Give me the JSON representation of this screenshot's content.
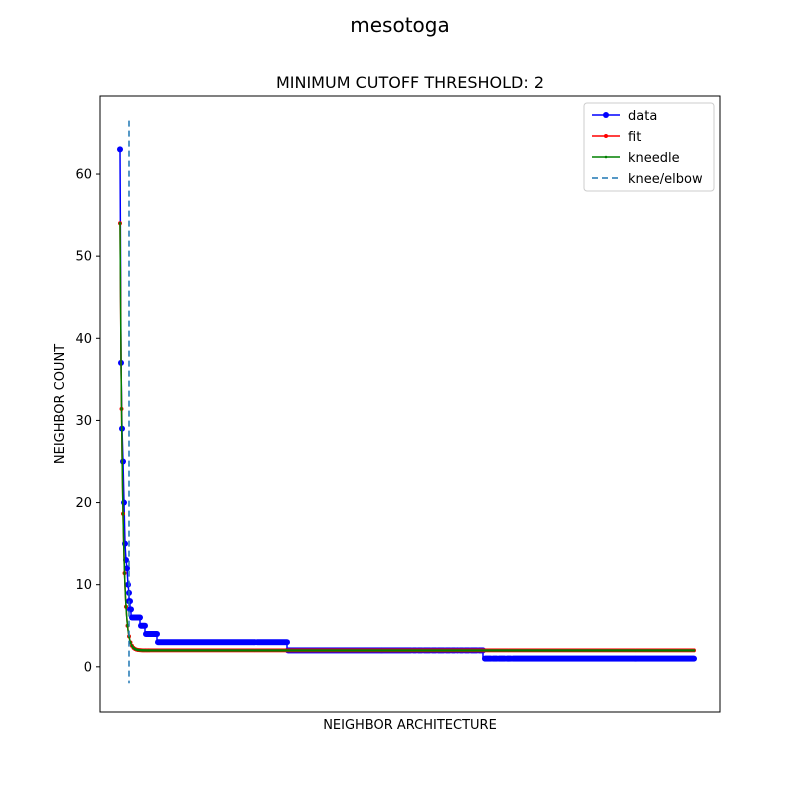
{
  "chart_data": {
    "type": "line",
    "suptitle": "mesotoga",
    "title": "MINIMUM CUTOFF THRESHOLD: 2",
    "xlabel": "NEIGHBOR ARCHITECTURE",
    "ylabel": "NEIGHBOR COUNT",
    "xlim": [
      -20,
      600
    ],
    "ylim": [
      -5.5,
      69.5
    ],
    "yticks": [
      0,
      10,
      20,
      30,
      40,
      50,
      60
    ],
    "xticks_visible": false,
    "grid": false,
    "legend_position": "top-right",
    "knee_x": 9,
    "series": [
      {
        "name": "data",
        "color": "#0000ff",
        "marker": "circle",
        "segments": [
          {
            "x": [
              0,
              1,
              2,
              3,
              4,
              5,
              6,
              7,
              8,
              9
            ],
            "y": [
              63,
              37,
              29,
              25,
              20,
              15,
              13,
              12,
              10,
              9
            ]
          },
          {
            "x_range": [
              9,
              10
            ],
            "y": 8
          },
          {
            "x_range": [
              10,
              11
            ],
            "y": 7
          },
          {
            "x_range": [
              11,
              20
            ],
            "y": 6
          },
          {
            "x_range": [
              20,
              25
            ],
            "y": 5
          },
          {
            "x_range": [
              25,
              37
            ],
            "y": 4
          },
          {
            "x_range": [
              37,
              167
            ],
            "y": 3
          },
          {
            "x_range": [
              167,
              363
            ],
            "y": 2
          },
          {
            "x_range": [
              363,
              574
            ],
            "y": 1
          }
        ]
      },
      {
        "name": "fit",
        "color": "#ff0000",
        "marker": "point",
        "curve": {
          "amplitude": 52,
          "decay": 0.38,
          "floor": 2,
          "x_range": [
            0,
            574
          ]
        }
      },
      {
        "name": "kneedle",
        "color": "#008000",
        "marker": "small-point",
        "curve": {
          "amplitude": 52,
          "decay": 0.38,
          "floor": 2,
          "x_range": [
            0,
            574
          ]
        }
      },
      {
        "name": "knee/elbow",
        "color": "#1f77b4",
        "linestyle": "dashed",
        "vline_x": 9
      }
    ]
  }
}
